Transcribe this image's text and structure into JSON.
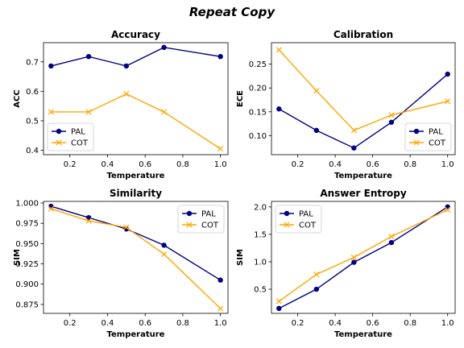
{
  "figure": {
    "title": "Repeat Copy"
  },
  "chart_data": [
    {
      "type": "line",
      "title": "Accuracy",
      "xlabel": "Temperature",
      "ylabel": "ACC",
      "xlim": [
        0.06,
        1.04
      ],
      "ylim": [
        0.385,
        0.765
      ],
      "xticks": [
        0.2,
        0.4,
        0.6,
        0.8,
        1.0
      ],
      "xtick_labels": [
        "0.2",
        "0.4",
        "0.6",
        "0.8",
        "1.0"
      ],
      "yticks": [
        0.4,
        0.5,
        0.6,
        0.7
      ],
      "ytick_labels": [
        "0.4",
        "0.5",
        "0.6",
        "0.7"
      ],
      "legend": "lower-left",
      "x": [
        0.1,
        0.3,
        0.5,
        0.7,
        1.0
      ],
      "series": [
        {
          "name": "PAL",
          "color": "#000080",
          "marker": "circle",
          "values": [
            0.686,
            0.718,
            0.686,
            0.749,
            0.718
          ]
        },
        {
          "name": "COT",
          "color": "#ffa500",
          "marker": "x",
          "values": [
            0.53,
            0.53,
            0.591,
            0.53,
            0.405
          ]
        }
      ]
    },
    {
      "type": "line",
      "title": "Calibration",
      "xlabel": "Temperature",
      "ylabel": "ECE",
      "xlim": [
        0.06,
        1.04
      ],
      "ylim": [
        0.06,
        0.295
      ],
      "xticks": [
        0.2,
        0.4,
        0.6,
        0.8,
        1.0
      ],
      "xtick_labels": [
        "0.2",
        "0.4",
        "0.6",
        "0.8",
        "1.0"
      ],
      "yticks": [
        0.1,
        0.15,
        0.2,
        0.25
      ],
      "ytick_labels": [
        "0.10",
        "0.15",
        "0.20",
        "0.25"
      ],
      "legend": "lower-right",
      "x": [
        0.1,
        0.3,
        0.5,
        0.7,
        1.0
      ],
      "series": [
        {
          "name": "PAL",
          "color": "#000080",
          "marker": "circle",
          "values": [
            0.156,
            0.111,
            0.074,
            0.128,
            0.229
          ]
        },
        {
          "name": "COT",
          "color": "#ffa500",
          "marker": "x",
          "values": [
            0.28,
            0.194,
            0.111,
            0.143,
            0.172
          ]
        }
      ]
    },
    {
      "type": "line",
      "title": "Similarity",
      "xlabel": "Temperature",
      "ylabel": "SIM",
      "xlim": [
        0.06,
        1.04
      ],
      "ylim": [
        0.864,
        1.002
      ],
      "xticks": [
        0.2,
        0.4,
        0.6,
        0.8,
        1.0
      ],
      "xtick_labels": [
        "0.2",
        "0.4",
        "0.6",
        "0.8",
        "1.0"
      ],
      "yticks": [
        0.875,
        0.9,
        0.925,
        0.95,
        0.975,
        1.0
      ],
      "ytick_labels": [
        "0.875",
        "0.900",
        "0.925",
        "0.950",
        "0.975",
        "1.000"
      ],
      "legend": "upper-right",
      "x": [
        0.1,
        0.3,
        0.5,
        0.7,
        1.0
      ],
      "series": [
        {
          "name": "PAL",
          "color": "#000080",
          "marker": "circle",
          "values": [
            0.996,
            0.982,
            0.968,
            0.948,
            0.905
          ]
        },
        {
          "name": "COT",
          "color": "#ffa500",
          "marker": "x",
          "values": [
            0.993,
            0.978,
            0.97,
            0.937,
            0.87
          ]
        }
      ]
    },
    {
      "type": "line",
      "title": "Answer Entropy",
      "xlabel": "Temperature",
      "ylabel": "SIM",
      "xlim": [
        0.06,
        1.04
      ],
      "ylim": [
        0.06,
        2.1
      ],
      "xticks": [
        0.2,
        0.4,
        0.6,
        0.8,
        1.0
      ],
      "xtick_labels": [
        "0.2",
        "0.4",
        "0.6",
        "0.8",
        "1.0"
      ],
      "yticks": [
        0.5,
        1.0,
        1.5,
        2.0
      ],
      "ytick_labels": [
        "0.5",
        "1.0",
        "1.5",
        "2.0"
      ],
      "legend": "upper-left",
      "x": [
        0.1,
        0.3,
        0.5,
        0.7,
        1.0
      ],
      "series": [
        {
          "name": "PAL",
          "color": "#000080",
          "marker": "circle",
          "values": [
            0.15,
            0.5,
            0.99,
            1.35,
            2.0
          ]
        },
        {
          "name": "COT",
          "color": "#ffa500",
          "marker": "x",
          "values": [
            0.28,
            0.77,
            1.08,
            1.46,
            1.95
          ]
        }
      ]
    }
  ]
}
